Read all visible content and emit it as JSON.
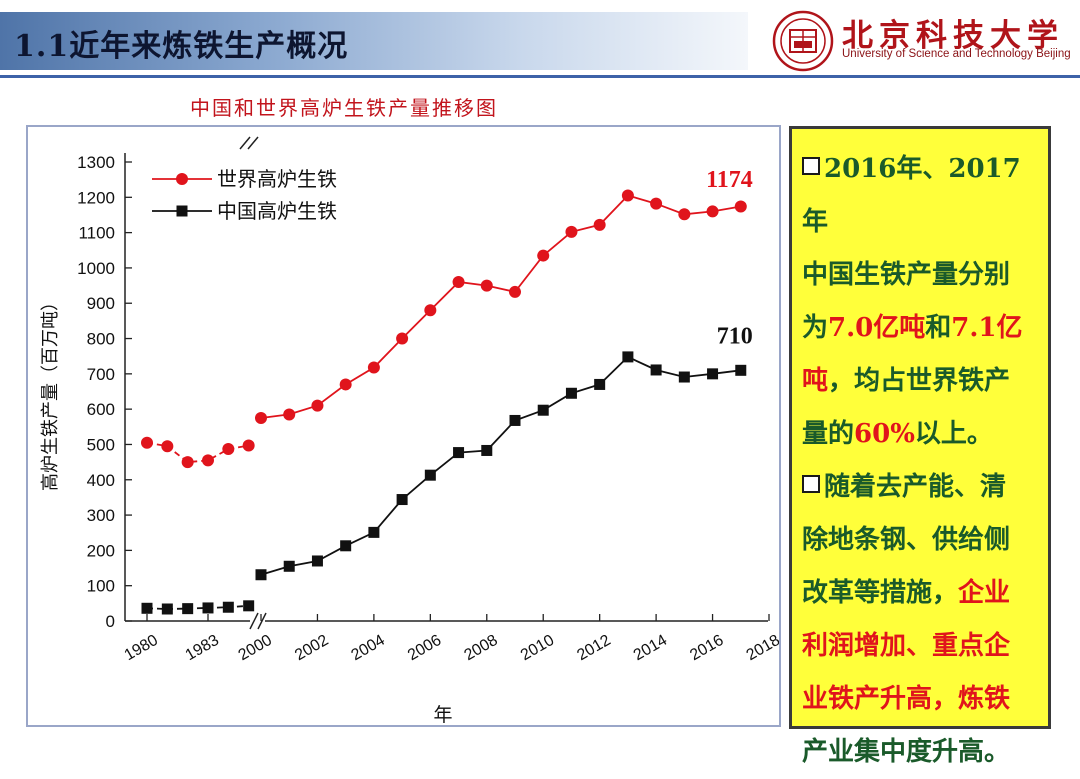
{
  "header": {
    "title": "1.1近年来炼铁生产概况"
  },
  "logo": {
    "seal_text": "北京科技大学",
    "name_cn": "北京科技大学",
    "name_en": "University of Science and Technology Beijing"
  },
  "chart_data": {
    "type": "line",
    "title": "中国和世界高炉生铁产量推移图",
    "xlabel": "年",
    "ylabel": "高炉生铁产量（百万吨）",
    "ylim": [
      0,
      1300
    ],
    "yticks": [
      0,
      100,
      200,
      300,
      400,
      500,
      600,
      700,
      800,
      900,
      1000,
      1100,
      1200,
      1300
    ],
    "xticks": [
      "1980",
      "1983",
      "2000",
      "2002",
      "2004",
      "2006",
      "2008",
      "2010",
      "2012",
      "2014",
      "2016",
      "2018"
    ],
    "axis_break": "1983-2000",
    "legend_position": "top-left",
    "grid": false,
    "x_before_break": [
      1980,
      1981,
      1982,
      1983,
      1984,
      1985
    ],
    "x_after_break": [
      2000,
      2001,
      2002,
      2003,
      2004,
      2005,
      2006,
      2007,
      2008,
      2009,
      2010,
      2011,
      2012,
      2013,
      2014,
      2015,
      2016,
      2017
    ],
    "series": [
      {
        "name": "世界高炉生铁",
        "color": "#e0141c",
        "marker": "circle",
        "values_before_break": [
          505,
          495,
          450,
          455,
          487,
          497
        ],
        "values_after_break": [
          575,
          585,
          610,
          670,
          718,
          800,
          880,
          960,
          950,
          932,
          1035,
          1102,
          1122,
          1205,
          1182,
          1152,
          1160,
          1174
        ],
        "end_label": "1174"
      },
      {
        "name": "中国高炉生铁",
        "color": "#111111",
        "marker": "square",
        "values_before_break": [
          36,
          34,
          35,
          37,
          39,
          43
        ],
        "values_after_break": [
          131,
          155,
          170,
          213,
          251,
          344,
          413,
          477,
          483,
          568,
          597,
          645,
          670,
          748,
          711,
          691,
          700,
          710
        ],
        "end_label": "710"
      }
    ]
  },
  "info": {
    "line1": "2016年、2017年",
    "line2": "中国生铁产量分别",
    "line3_a": "为",
    "line3_b": "7.0亿吨",
    "line3_c": "和",
    "line3_d": "7.1亿",
    "line4_a": "吨",
    "line4_b": "，均占世界铁产",
    "line5_a": "量的",
    "line5_b": "60%",
    "line5_c": "以上。",
    "line6": "随着去产能、清",
    "line7": "除地条钢、供给侧",
    "line8_a": "改革等措施，",
    "line8_b": "企业",
    "line9": "利润增加、重点企",
    "line10": "业铁产升高，炼铁",
    "line11": "产业集中度升高。"
  }
}
